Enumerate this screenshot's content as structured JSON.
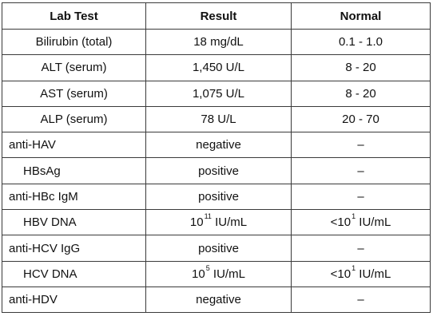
{
  "table": {
    "headers": {
      "test": "Lab Test",
      "result": "Result",
      "normal": "Normal"
    },
    "rows": [
      {
        "test": "Bilirubin (total)",
        "align": "center",
        "result": {
          "pre": "18 mg/dL",
          "sup": "",
          "post": ""
        },
        "normal": {
          "pre": "0.1 - 1.0",
          "sup": "",
          "post": ""
        }
      },
      {
        "test": "ALT (serum)",
        "align": "center",
        "result": {
          "pre": "1,450 U/L",
          "sup": "",
          "post": ""
        },
        "normal": {
          "pre": "8 - 20",
          "sup": "",
          "post": ""
        }
      },
      {
        "test": "AST (serum)",
        "align": "center",
        "result": {
          "pre": "1,075 U/L",
          "sup": "",
          "post": ""
        },
        "normal": {
          "pre": "8 - 20",
          "sup": "",
          "post": ""
        }
      },
      {
        "test": "ALP (serum)",
        "align": "center",
        "result": {
          "pre": "78 U/L",
          "sup": "",
          "post": ""
        },
        "normal": {
          "pre": "20 - 70",
          "sup": "",
          "post": ""
        }
      },
      {
        "test": "anti-HAV",
        "align": "left",
        "result": {
          "pre": "negative",
          "sup": "",
          "post": ""
        },
        "normal": {
          "pre": "–",
          "sup": "",
          "post": ""
        }
      },
      {
        "test": "HBsAg",
        "align": "indent",
        "result": {
          "pre": "positive",
          "sup": "",
          "post": ""
        },
        "normal": {
          "pre": "–",
          "sup": "",
          "post": ""
        }
      },
      {
        "test": "anti-HBc IgM",
        "align": "left",
        "result": {
          "pre": "positive",
          "sup": "",
          "post": ""
        },
        "normal": {
          "pre": "–",
          "sup": "",
          "post": ""
        }
      },
      {
        "test": "HBV DNA",
        "align": "indent",
        "result": {
          "pre": "10",
          "sup": "11",
          "post": " IU/mL"
        },
        "normal": {
          "pre": "<10",
          "sup": "1",
          "post": " IU/mL"
        }
      },
      {
        "test": "anti-HCV IgG",
        "align": "left",
        "result": {
          "pre": "positive",
          "sup": "",
          "post": ""
        },
        "normal": {
          "pre": "–",
          "sup": "",
          "post": ""
        }
      },
      {
        "test": "HCV DNA",
        "align": "indent",
        "result": {
          "pre": "10",
          "sup": "5",
          "post": " IU/mL"
        },
        "normal": {
          "pre": "<10",
          "sup": "1",
          "post": " IU/mL"
        }
      },
      {
        "test": "anti-HDV",
        "align": "left",
        "result": {
          "pre": "negative",
          "sup": "",
          "post": ""
        },
        "normal": {
          "pre": "–",
          "sup": "",
          "post": ""
        }
      }
    ]
  }
}
